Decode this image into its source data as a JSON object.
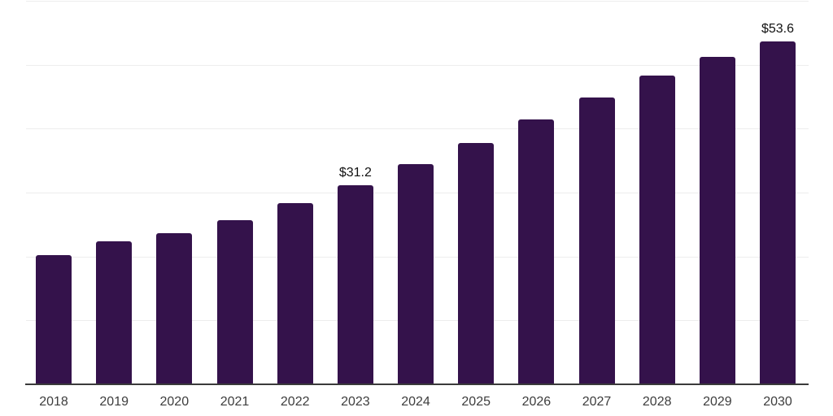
{
  "chart_data": {
    "type": "bar",
    "title": "",
    "categories": [
      "2018",
      "2019",
      "2020",
      "2021",
      "2022",
      "2023",
      "2024",
      "2025",
      "2026",
      "2027",
      "2028",
      "2029",
      "2030"
    ],
    "values": [
      20.2,
      22.4,
      23.7,
      25.7,
      28.3,
      31.2,
      34.4,
      37.8,
      41.5,
      44.9,
      48.3,
      51.2,
      53.6
    ],
    "value_labels": [
      "",
      "",
      "",
      "",
      "",
      "$31.2",
      "",
      "",
      "",
      "",
      "",
      "",
      "$53.6"
    ],
    "xlabel": "",
    "ylabel": "",
    "ylim": [
      0,
      60
    ],
    "grid_step": 10,
    "grid": true,
    "y_tick_labels_visible": false,
    "legend": false,
    "colors": {
      "bar": "#34124B",
      "gridline": "#EDEDED",
      "axis": "#3A3A3A",
      "tick_label": "#3D3D3D",
      "value_label": "#111111",
      "background": "#FFFFFF"
    }
  }
}
